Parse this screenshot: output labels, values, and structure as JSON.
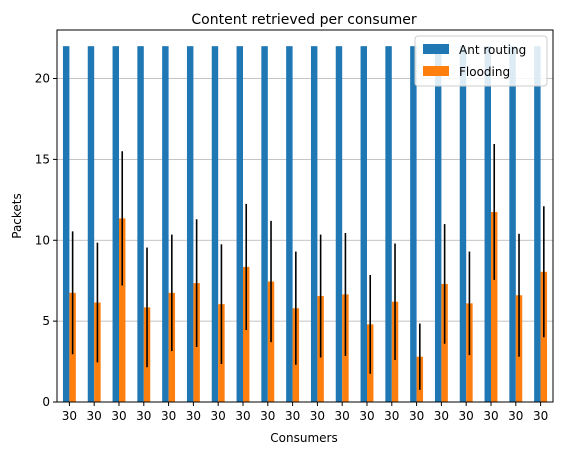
{
  "chart_data": {
    "type": "bar",
    "title": "Content retrieved per consumer",
    "xlabel": "Consumers",
    "ylabel": "Packets",
    "ylim": [
      0,
      23
    ],
    "yticks": [
      0,
      5,
      10,
      15,
      20
    ],
    "grid": "y",
    "legend_position": "top-right",
    "categories": [
      "30",
      "30",
      "30",
      "30",
      "30",
      "30",
      "30",
      "30",
      "30",
      "30",
      "30",
      "30",
      "30",
      "30",
      "30",
      "30",
      "30",
      "30",
      "30",
      "30"
    ],
    "series": [
      {
        "name": "Ant routing",
        "color": "#1f77b4",
        "values": [
          22,
          22,
          22,
          22,
          22,
          22,
          22,
          22,
          22,
          22,
          22,
          22,
          22,
          22,
          22,
          22,
          22,
          22,
          22,
          22
        ]
      },
      {
        "name": "Flooding",
        "color": "#ff7f0e",
        "values": [
          6.75,
          6.15,
          11.35,
          5.85,
          6.75,
          7.35,
          6.05,
          8.35,
          7.45,
          5.8,
          6.55,
          6.65,
          4.8,
          6.2,
          2.8,
          7.3,
          6.1,
          11.75,
          6.6,
          8.05
        ],
        "errors": [
          3.8,
          3.7,
          4.15,
          3.7,
          3.6,
          3.95,
          3.7,
          3.9,
          3.75,
          3.5,
          3.8,
          3.8,
          3.05,
          3.6,
          2.05,
          3.7,
          3.2,
          4.2,
          3.8,
          4.05
        ]
      }
    ]
  }
}
